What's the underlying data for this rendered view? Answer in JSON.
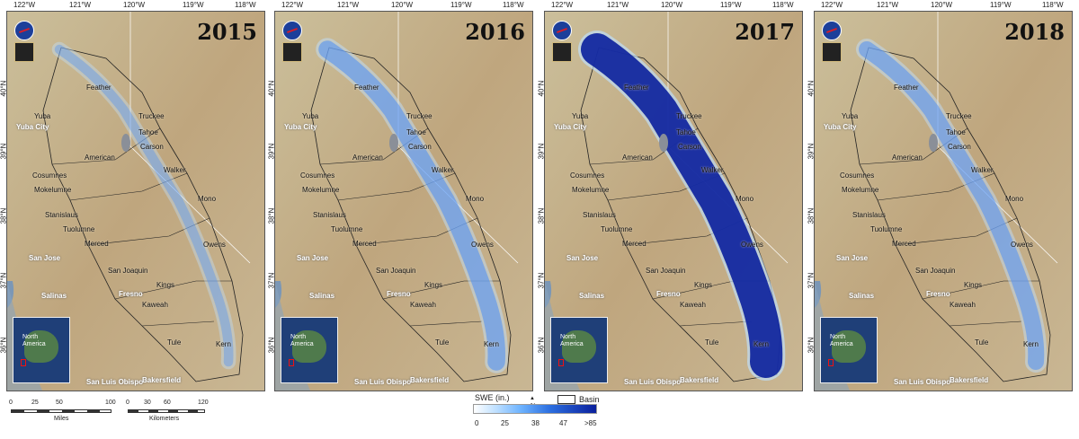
{
  "colors": {
    "terrain": "#c8b48c",
    "snow_light": "#bfe0ff",
    "snow_mid": "#4d8ff5",
    "snow_dark": "#0a1f9c",
    "basin_line": "#222222"
  },
  "icons": [
    "nasa-logo",
    "cu-logo",
    "inset-north-america-map"
  ],
  "lon_labels": [
    "122°W",
    "121°W",
    "120°W",
    "119°W",
    "118°W"
  ],
  "lat_labels": [
    "40°N",
    "39°N",
    "38°N",
    "37°N",
    "36°N"
  ],
  "panels": [
    {
      "year": "2015",
      "snow_level": 0.15
    },
    {
      "year": "2016",
      "snow_level": 0.45
    },
    {
      "year": "2017",
      "snow_level": 1.0
    },
    {
      "year": "2018",
      "snow_level": 0.4
    }
  ],
  "basins": [
    "Feather",
    "Yuba",
    "Truckee",
    "Tahoe",
    "Carson",
    "American",
    "Walker",
    "Cosumnes",
    "Mokelumne",
    "Mono",
    "Stanislaus",
    "Tuolumne",
    "Merced",
    "Owens",
    "San Joaquin",
    "Kings",
    "Kaweah",
    "Tule",
    "Kern"
  ],
  "cities": [
    "Yuba City",
    "San Jose",
    "Salinas",
    "Fresno",
    "San Luis Obispo",
    "Bakersfield"
  ],
  "inset_label": "North\nAmerica",
  "scale": {
    "miles": [
      "0",
      "25",
      "50",
      "100"
    ],
    "miles_label": "Miles",
    "km": [
      "0",
      "30",
      "60",
      "120"
    ],
    "km_label": "Kilometers"
  },
  "legend": {
    "swe_label": "SWE (in.)",
    "ticks": [
      "0",
      "25",
      "38",
      "47",
      ">85"
    ],
    "basin_label": "Basin",
    "north": "N"
  }
}
